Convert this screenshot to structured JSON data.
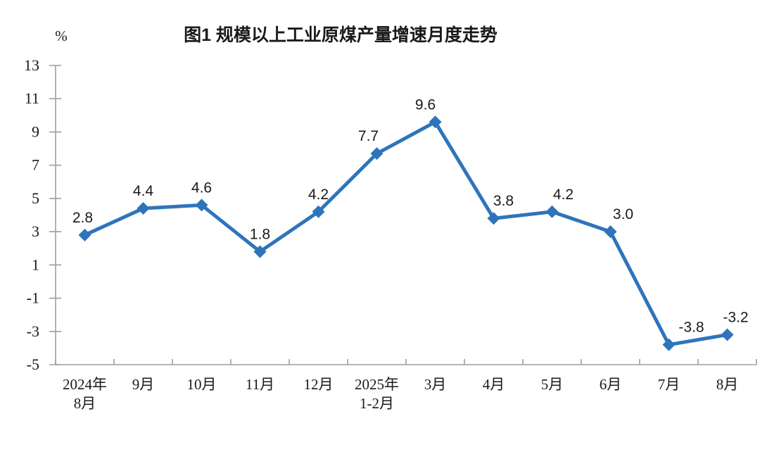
{
  "page": {
    "background_color": "#ffffff"
  },
  "chart_data": {
    "type": "line",
    "title": "图1  规模以上工业原煤产量增速月度走势",
    "ylabel": "%",
    "xlabel": "",
    "categories": [
      [
        "2024年",
        "8月"
      ],
      [
        "9月"
      ],
      [
        "10月"
      ],
      [
        "11月"
      ],
      [
        "12月"
      ],
      [
        "2025年",
        "1-2月"
      ],
      [
        "3月"
      ],
      [
        "4月"
      ],
      [
        "5月"
      ],
      [
        "6月"
      ],
      [
        "7月"
      ],
      [
        "8月"
      ]
    ],
    "series": [
      {
        "name": "规模以上工业原煤产量增速",
        "values": [
          2.8,
          4.4,
          4.6,
          1.8,
          4.2,
          7.7,
          9.6,
          3.8,
          4.2,
          3.0,
          -3.8,
          -3.2
        ],
        "data_labels": [
          "2.8",
          "4.4",
          "4.6",
          "1.8",
          "4.2",
          "7.7",
          "9.6",
          "3.8",
          "4.2",
          "3.0",
          "-3.8",
          "-3.2"
        ]
      }
    ],
    "ylim": [
      -5,
      13
    ],
    "yticks": [
      13,
      11,
      9,
      7,
      5,
      3,
      1,
      -1,
      -3,
      -5
    ],
    "grid": false,
    "legend": "none",
    "marker": "diamond",
    "line_color": "#2E74BB",
    "marker_color": "#2E74BB",
    "axis_color": "#9E9E9E",
    "text_color": "#1a1a1a"
  }
}
